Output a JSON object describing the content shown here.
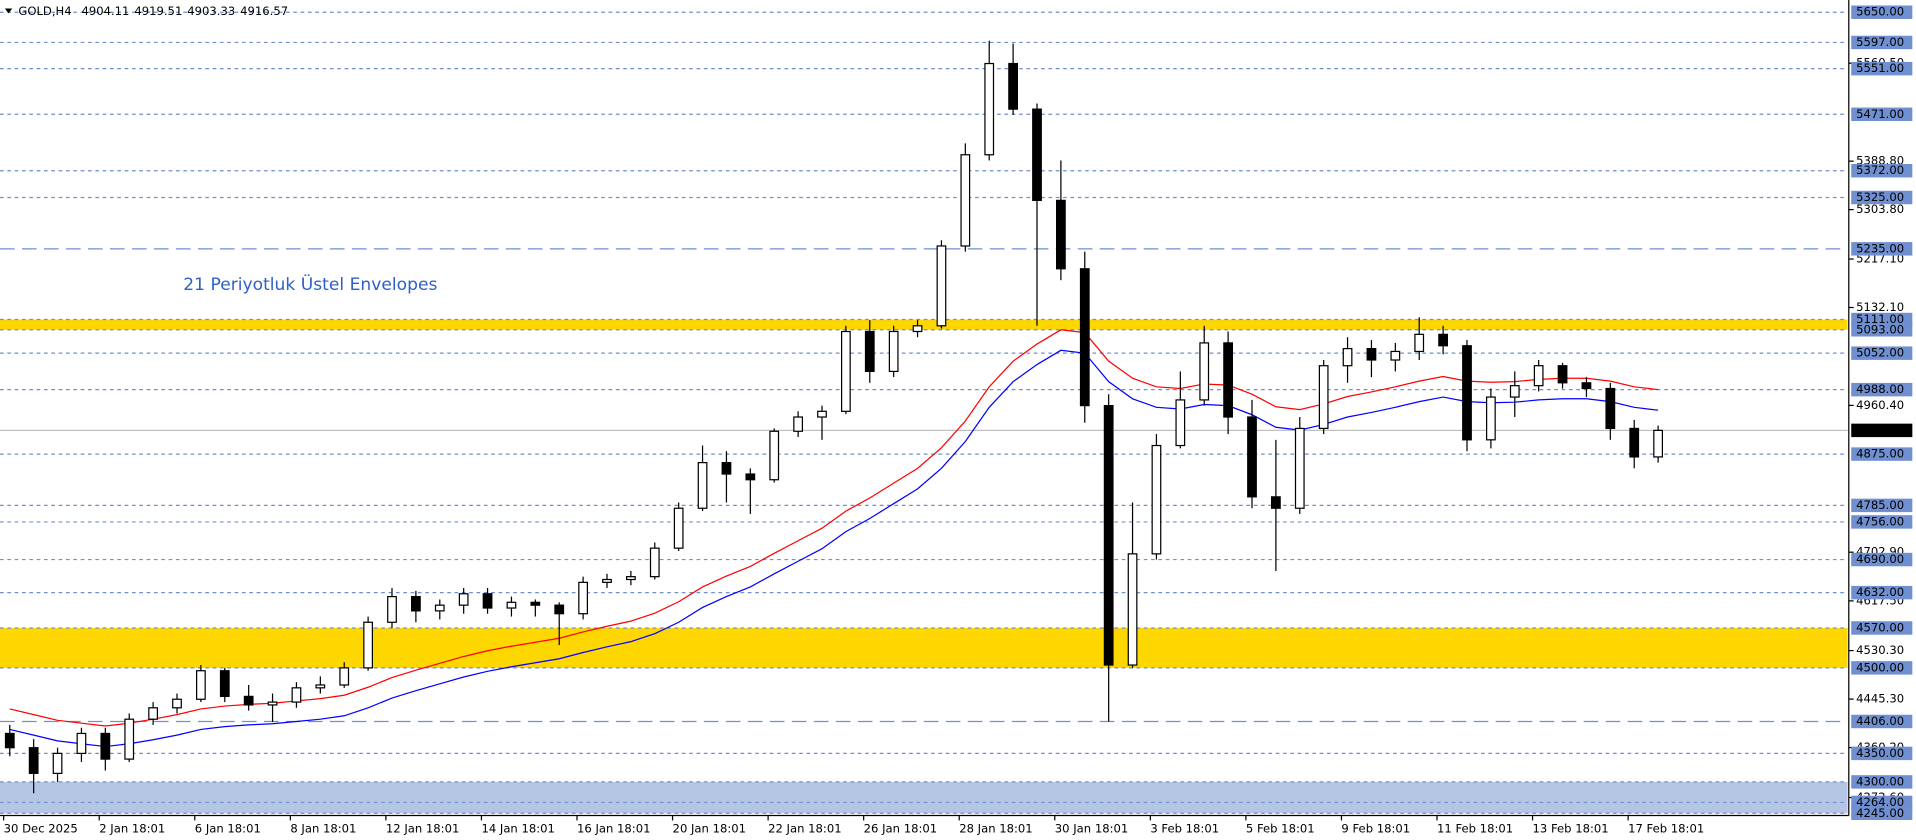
{
  "chart_data": {
    "type": "candlestick",
    "title": "GOLD,H4",
    "header_ohlc": [
      4904.11,
      4919.51,
      4903.33,
      4916.57
    ],
    "annotation": "21 Periyotluk Üstel Envelopes",
    "categories": [
      "30 Dec 2025",
      null,
      null,
      null,
      "2 Jan 18:01",
      null,
      null,
      null,
      "6 Jan 18:01",
      null,
      null,
      null,
      "8 Jan 18:01",
      null,
      null,
      null,
      "12 Jan 18:01",
      null,
      null,
      null,
      "14 Jan 18:01",
      null,
      null,
      null,
      "16 Jan 18:01",
      null,
      null,
      null,
      "20 Jan 18:01",
      null,
      null,
      null,
      "22 Jan 18:01",
      null,
      null,
      null,
      "26 Jan 18:01",
      null,
      null,
      null,
      "28 Jan 18:01",
      null,
      null,
      null,
      "30 Jan 18:01",
      null,
      null,
      null,
      "3 Feb 18:01",
      null,
      null,
      null,
      "5 Feb 18:01",
      null,
      null,
      null,
      "9 Feb 18:01",
      null,
      null,
      null,
      "11 Feb 18:01",
      null,
      null,
      null,
      "13 Feb 18:01",
      null,
      null,
      null,
      "17 Feb 18:01",
      null
    ],
    "open": [
      4385,
      4360,
      4315,
      4350,
      4385,
      4340,
      4410,
      4430,
      4445,
      4495,
      4450,
      4435,
      4440,
      4465,
      4470,
      4500,
      4580,
      4625,
      4600,
      4610,
      4630,
      4605,
      4615,
      4610,
      4595,
      4650,
      4655,
      4660,
      4710,
      4780,
      4860,
      4840,
      4830,
      4915,
      4940,
      4950,
      5090,
      5020,
      5090,
      5100,
      5240,
      5400,
      5560,
      5480,
      5320,
      5200,
      4960,
      4505,
      4700,
      4890,
      4970,
      5070,
      4940,
      4800,
      4780,
      4920,
      5030,
      5060,
      5040,
      5055,
      5085,
      5065,
      4900,
      4975,
      4995,
      5030,
      5000,
      4990,
      4920,
      4870
    ],
    "high": [
      4400,
      4375,
      4360,
      4395,
      4395,
      4420,
      4440,
      4455,
      4505,
      4500,
      4470,
      4455,
      4475,
      4485,
      4510,
      4590,
      4640,
      4635,
      4620,
      4640,
      4640,
      4625,
      4620,
      4615,
      4660,
      4665,
      4670,
      4720,
      4790,
      4890,
      4880,
      4850,
      4920,
      4950,
      4960,
      5100,
      5110,
      5100,
      5110,
      5250,
      5420,
      5600,
      5595,
      5490,
      5390,
      5230,
      4980,
      4790,
      4910,
      5020,
      5100,
      5090,
      4970,
      4900,
      4940,
      5040,
      5080,
      5075,
      5070,
      5115,
      5100,
      5075,
      4990,
      5020,
      5040,
      5035,
      5010,
      5000,
      4935,
      4925
    ],
    "low": [
      4345,
      4280,
      4300,
      4335,
      4320,
      4335,
      4400,
      4420,
      4440,
      4440,
      4425,
      4405,
      4430,
      4455,
      4465,
      4495,
      4570,
      4580,
      4585,
      4595,
      4595,
      4590,
      4590,
      4540,
      4585,
      4640,
      4645,
      4655,
      4705,
      4775,
      4790,
      4770,
      4825,
      4905,
      4900,
      4945,
      5000,
      5010,
      5080,
      5095,
      5230,
      5390,
      5470,
      5100,
      5180,
      4930,
      4406,
      4500,
      4690,
      4885,
      4960,
      4910,
      4780,
      4670,
      4770,
      4910,
      5000,
      5010,
      5020,
      5040,
      5050,
      4880,
      4885,
      4940,
      4985,
      4990,
      4975,
      4900,
      4850,
      4860
    ],
    "close": [
      4360,
      4315,
      4350,
      4385,
      4340,
      4410,
      4430,
      4445,
      4495,
      4450,
      4435,
      4440,
      4465,
      4470,
      4500,
      4580,
      4625,
      4600,
      4610,
      4630,
      4605,
      4615,
      4610,
      4595,
      4650,
      4655,
      4660,
      4710,
      4780,
      4860,
      4840,
      4830,
      4915,
      4940,
      4950,
      5090,
      5020,
      5090,
      5100,
      5240,
      5400,
      5560,
      5480,
      5320,
      5200,
      4960,
      4505,
      4700,
      4890,
      4970,
      5070,
      4940,
      4800,
      4780,
      4920,
      5030,
      5060,
      5040,
      5055,
      5085,
      5065,
      4900,
      4975,
      4995,
      5030,
      5000,
      4990,
      4920,
      4870,
      4916.57
    ],
    "upper_envelope": {
      "color": "#ff0000",
      "values": [
        4428,
        4418,
        4408,
        4403,
        4398,
        4403,
        4410,
        4418,
        4428,
        4433,
        4436,
        4438,
        4442,
        4446,
        4452,
        4466,
        4483,
        4496,
        4508,
        4520,
        4530,
        4538,
        4545,
        4552,
        4563,
        4573,
        4582,
        4596,
        4616,
        4642,
        4661,
        4678,
        4701,
        4723,
        4745,
        4775,
        4798,
        4824,
        4850,
        4886,
        4933,
        4993,
        5038,
        5068,
        5093,
        5088,
        5038,
        5008,
        4993,
        4990,
        4998,
        4996,
        4980,
        4958,
        4953,
        4963,
        4976,
        4984,
        4993,
        5003,
        5011,
        5003,
        5001,
        5002,
        5006,
        5008,
        5008,
        5003,
        4993,
        4988
      ]
    },
    "lower_envelope": {
      "color": "#0000ff",
      "values": [
        4392,
        4382,
        4372,
        4367,
        4362,
        4367,
        4374,
        4382,
        4392,
        4397,
        4400,
        4402,
        4406,
        4410,
        4416,
        4430,
        4447,
        4460,
        4472,
        4484,
        4494,
        4502,
        4509,
        4516,
        4527,
        4537,
        4546,
        4560,
        4580,
        4606,
        4625,
        4642,
        4665,
        4687,
        4709,
        4739,
        4762,
        4788,
        4814,
        4850,
        4897,
        4957,
        5002,
        5032,
        5057,
        5052,
        5002,
        4972,
        4957,
        4954,
        4962,
        4960,
        4944,
        4922,
        4917,
        4927,
        4940,
        4948,
        4957,
        4967,
        4975,
        4967,
        4965,
        4966,
        4970,
        4972,
        4972,
        4967,
        4957,
        4952
      ]
    },
    "ylim": [
      4241,
      5665
    ],
    "yticks": [
      {
        "value": 5560.5,
        "label": "5560.50"
      },
      {
        "value": 5388.8,
        "label": "5388.80"
      },
      {
        "value": 5303.8,
        "label": "5303.80"
      },
      {
        "value": 5217.1,
        "label": "5217.10"
      },
      {
        "value": 5132.1,
        "label": "5132.10"
      },
      {
        "value": 4960.4,
        "label": "4960.40"
      },
      {
        "value": 4702.9,
        "label": "4702.90"
      },
      {
        "value": 4617.5,
        "label": "4617.50"
      },
      {
        "value": 4530.3,
        "label": "4530.30"
      },
      {
        "value": 4445.3,
        "label": "4445.30"
      },
      {
        "value": 4360.2,
        "label": "4360.20"
      },
      {
        "value": 4272.6,
        "label": "4272.60"
      }
    ],
    "zones": [
      {
        "from": 5093,
        "to": 5111,
        "color": "#ffd700"
      },
      {
        "from": 4500,
        "to": 4570,
        "color": "#ffd700"
      },
      {
        "from": 4245,
        "to": 4300,
        "color": "#b4c6e4"
      }
    ],
    "levels": [
      {
        "value": 5650,
        "label": "5650.00",
        "style": "short"
      },
      {
        "value": 5597,
        "label": "5597.00",
        "style": "short"
      },
      {
        "value": 5551,
        "label": "5551.00",
        "style": "short"
      },
      {
        "value": 5471,
        "label": "5471.00",
        "style": "short"
      },
      {
        "value": 5372,
        "label": "5372.00",
        "style": "short"
      },
      {
        "value": 5325,
        "label": "5325.00",
        "style": "short"
      },
      {
        "value": 5235,
        "label": "5235.00",
        "style": "long"
      },
      {
        "value": 5111,
        "label": "5111.00",
        "style": "short"
      },
      {
        "value": 5093,
        "label": "5093.00",
        "style": "short"
      },
      {
        "value": 5052,
        "label": "5052.00",
        "style": "short"
      },
      {
        "value": 4988,
        "label": "4988.00",
        "style": "short"
      },
      {
        "value": 4875,
        "label": "4875.00",
        "style": "short"
      },
      {
        "value": 4785,
        "label": "4785.00",
        "style": "short"
      },
      {
        "value": 4756,
        "label": "4756.00",
        "style": "short"
      },
      {
        "value": 4690,
        "label": "4690.00",
        "style": "short"
      },
      {
        "value": 4632,
        "label": "4632.00",
        "style": "short"
      },
      {
        "value": 4570,
        "label": "4570.00",
        "style": "short"
      },
      {
        "value": 4500,
        "label": "4500.00",
        "style": "short"
      },
      {
        "value": 4406,
        "label": "4406.00",
        "style": "long"
      },
      {
        "value": 4350,
        "label": "4350.00",
        "style": "short"
      },
      {
        "value": 4300,
        "label": "4300.00",
        "style": "short"
      },
      {
        "value": 4264,
        "label": "4264.00",
        "style": "short"
      },
      {
        "value": 4245,
        "label": "4245.00",
        "style": "short"
      }
    ],
    "level_color": "#6f8fd0",
    "current_price": 4916.57
  }
}
